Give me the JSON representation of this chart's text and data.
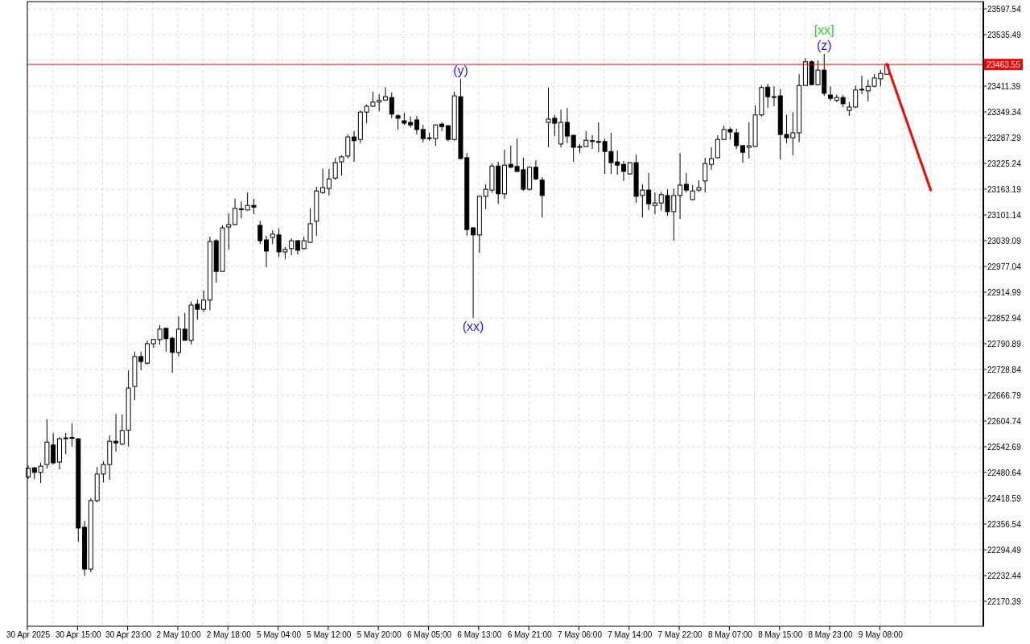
{
  "chart_data": {
    "type": "candlestick",
    "categories": [
      "30 Apr 2025",
      null,
      null,
      null,
      null,
      null,
      null,
      null,
      "30 Apr 15:00",
      null,
      null,
      null,
      null,
      null,
      null,
      null,
      "30 Apr 23:00",
      null,
      null,
      null,
      null,
      null,
      null,
      null,
      "2 May 10:00",
      null,
      null,
      null,
      null,
      null,
      null,
      null,
      "2 May 18:00",
      null,
      null,
      null,
      null,
      null,
      null,
      null,
      "5 May 04:00",
      null,
      null,
      null,
      null,
      null,
      null,
      null,
      "5 May 12:00",
      null,
      null,
      null,
      null,
      null,
      null,
      null,
      "5 May 20:00",
      null,
      null,
      null,
      null,
      null,
      null,
      null,
      "6 May 05:00",
      null,
      null,
      null,
      null,
      null,
      null,
      null,
      "6 May 13:00",
      null,
      null,
      null,
      null,
      null,
      null,
      null,
      "6 May 21:00",
      null,
      null,
      null,
      null,
      null,
      null,
      null,
      "7 May 06:00",
      null,
      null,
      null,
      null,
      null,
      null,
      null,
      "7 May 14:00",
      null,
      null,
      null,
      null,
      null,
      null,
      null,
      "7 May 22:00",
      null,
      null,
      null,
      null,
      null,
      null,
      null,
      "8 May 07:00",
      null,
      null,
      null,
      null,
      null,
      null,
      null,
      "8 May 15:00",
      null,
      null,
      null,
      null,
      null,
      null,
      null,
      "8 May 23:00",
      null,
      null,
      null,
      null,
      null,
      null,
      null,
      "9 May 08:00",
      null,
      null,
      null,
      null,
      null,
      null,
      null,
      null,
      null,
      null,
      null,
      null,
      null,
      null,
      null,
      null
    ],
    "ohlc": [
      [
        22470,
        22498,
        22465,
        22491
      ],
      [
        22492,
        22494,
        22465,
        22481
      ],
      [
        22481,
        22504,
        22455,
        22496
      ],
      [
        22500,
        22609,
        22490,
        22554
      ],
      [
        22547,
        22576,
        22500,
        22504
      ],
      [
        22506,
        22566,
        22488,
        22562
      ],
      [
        22564,
        22576,
        22525,
        22563
      ],
      [
        22564,
        22599,
        22543,
        22565
      ],
      [
        22562,
        22563,
        22314,
        22347
      ],
      [
        22349,
        22364,
        22232,
        22248
      ],
      [
        22248,
        22419,
        22240,
        22413
      ],
      [
        22413,
        22494,
        22409,
        22477
      ],
      [
        22477,
        22508,
        22457,
        22500
      ],
      [
        22500,
        22570,
        22463,
        22556
      ],
      [
        22556,
        22622,
        22531,
        22552
      ],
      [
        22549,
        22620,
        22547,
        22582
      ],
      [
        22583,
        22727,
        22543,
        22684
      ],
      [
        22688,
        22772,
        22655,
        22760
      ],
      [
        22760,
        22772,
        22727,
        22748
      ],
      [
        22744,
        22799,
        22741,
        22791
      ],
      [
        22791,
        22803,
        22781,
        22801
      ],
      [
        22801,
        22836,
        22789,
        22826
      ],
      [
        22828,
        22829,
        22772,
        22803
      ],
      [
        22804,
        22808,
        22721,
        22770
      ],
      [
        22770,
        22857,
        22760,
        22826
      ],
      [
        22826,
        22865,
        22799,
        22799
      ],
      [
        22799,
        22892,
        22789,
        22884
      ],
      [
        22886,
        22898,
        22849,
        22874
      ],
      [
        22874,
        22919,
        22867,
        22896
      ],
      [
        22896,
        23049,
        22872,
        23037
      ],
      [
        23039,
        23043,
        22938,
        22965
      ],
      [
        22965,
        23076,
        22964,
        23070
      ],
      [
        23072,
        23105,
        23018,
        23078
      ],
      [
        23078,
        23140,
        23076,
        23117
      ],
      [
        23115,
        23134,
        23093,
        23116
      ],
      [
        23113,
        23155,
        23112,
        23124
      ],
      [
        23124,
        23140,
        23103,
        23120
      ],
      [
        23076,
        23087,
        23031,
        23039
      ],
      [
        23041,
        23051,
        22975,
        23014
      ],
      [
        23047,
        23064,
        23031,
        23055
      ],
      [
        23053,
        23068,
        23000,
        23012
      ],
      [
        23012,
        23024,
        22995,
        23018
      ],
      [
        23020,
        23045,
        23004,
        23039
      ],
      [
        23039,
        23041,
        23006,
        23016
      ],
      [
        23020,
        23049,
        23018,
        23039
      ],
      [
        23035,
        23117,
        23034,
        23080
      ],
      [
        23086,
        23169,
        23051,
        23159
      ],
      [
        23155,
        23212,
        23152,
        23167
      ],
      [
        23165,
        23212,
        23148,
        23188
      ],
      [
        23190,
        23239,
        23186,
        23227
      ],
      [
        23229,
        23245,
        23196,
        23241
      ],
      [
        23243,
        23295,
        23237,
        23289
      ],
      [
        23289,
        23303,
        23229,
        23280
      ],
      [
        23283,
        23353,
        23274,
        23349
      ],
      [
        23349,
        23367,
        23322,
        23363
      ],
      [
        23363,
        23398,
        23361,
        23373
      ],
      [
        23373,
        23392,
        23351,
        23377
      ],
      [
        23378,
        23409,
        23376,
        23386
      ],
      [
        23384,
        23396,
        23334,
        23344
      ],
      [
        23340,
        23344,
        23307,
        23334
      ],
      [
        23328,
        23347,
        23318,
        23322
      ],
      [
        23324,
        23338,
        23312,
        23318
      ],
      [
        23330,
        23340,
        23295,
        23307
      ],
      [
        23307,
        23318,
        23276,
        23285
      ],
      [
        23287,
        23299,
        23280,
        23286
      ],
      [
        23285,
        23319,
        23268,
        23318
      ],
      [
        23320,
        23324,
        23303,
        23314
      ],
      [
        23316,
        23318,
        23278,
        23283
      ],
      [
        23283,
        23398,
        23280,
        23388
      ],
      [
        23386,
        23429,
        23235,
        23237
      ],
      [
        23239,
        23250,
        23051,
        23066
      ],
      [
        23070,
        23072,
        22853,
        23053
      ],
      [
        23053,
        23147,
        23010,
        23146
      ],
      [
        23146,
        23175,
        23115,
        23163
      ],
      [
        23161,
        23225,
        23154,
        23219
      ],
      [
        23219,
        23229,
        23128,
        23152
      ],
      [
        23152,
        23258,
        23140,
        23221
      ],
      [
        23223,
        23268,
        23214,
        23216
      ],
      [
        23218,
        23285,
        23204,
        23206
      ],
      [
        23210,
        23239,
        23159,
        23163
      ],
      [
        23163,
        23218,
        23159,
        23216
      ],
      [
        23216,
        23233,
        23185,
        23188
      ],
      [
        23185,
        23192,
        23095,
        23148
      ],
      [
        23324,
        23408,
        23264,
        23332
      ],
      [
        23334,
        23342,
        23291,
        23322
      ],
      [
        23272,
        23355,
        23264,
        23324
      ],
      [
        23324,
        23359,
        23274,
        23291
      ],
      [
        23293,
        23294,
        23229,
        23264
      ],
      [
        23266,
        23272,
        23250,
        23265
      ],
      [
        23266,
        23303,
        23265,
        23281
      ],
      [
        23280,
        23293,
        23260,
        23279
      ],
      [
        23278,
        23324,
        23252,
        23277
      ],
      [
        23278,
        23285,
        23200,
        23254
      ],
      [
        23254,
        23299,
        23200,
        23227
      ],
      [
        23229,
        23256,
        23198,
        23221
      ],
      [
        23223,
        23231,
        23183,
        23206
      ],
      [
        23200,
        23228,
        23198,
        23227
      ],
      [
        23227,
        23247,
        23130,
        23146
      ],
      [
        23148,
        23175,
        23095,
        23161
      ],
      [
        23161,
        23202,
        23113,
        23128
      ],
      [
        23124,
        23155,
        23103,
        23130
      ],
      [
        23130,
        23157,
        23111,
        23150
      ],
      [
        23148,
        23163,
        23099,
        23109
      ],
      [
        23109,
        23165,
        23039,
        23148
      ],
      [
        23148,
        23250,
        23091,
        23173
      ],
      [
        23175,
        23202,
        23155,
        23161
      ],
      [
        23138,
        23173,
        23137,
        23159
      ],
      [
        23161,
        23185,
        23157,
        23167
      ],
      [
        23183,
        23239,
        23155,
        23225
      ],
      [
        23223,
        23264,
        23210,
        23237
      ],
      [
        23239,
        23293,
        23238,
        23283
      ],
      [
        23283,
        23316,
        23282,
        23307
      ],
      [
        23307,
        23312,
        23283,
        23301
      ],
      [
        23299,
        23309,
        23260,
        23268
      ],
      [
        23268,
        23270,
        23227,
        23252
      ],
      [
        23264,
        23324,
        23237,
        23268
      ],
      [
        23266,
        23365,
        23265,
        23342
      ],
      [
        23342,
        23413,
        23338,
        23408
      ],
      [
        23409,
        23417,
        23359,
        23386
      ],
      [
        23386,
        23411,
        23363,
        23385
      ],
      [
        23388,
        23404,
        23235,
        23295
      ],
      [
        23295,
        23342,
        23274,
        23287
      ],
      [
        23287,
        23349,
        23245,
        23299
      ],
      [
        23299,
        23440,
        23276,
        23413
      ],
      [
        23413,
        23479,
        23412,
        23470
      ],
      [
        23470,
        23473,
        23414,
        23415
      ],
      [
        23415,
        23473,
        23413,
        23450
      ],
      [
        23450,
        23489,
        23388,
        23394
      ],
      [
        23390,
        23411,
        23376,
        23382
      ],
      [
        23377,
        23391,
        23373,
        23384
      ],
      [
        23384,
        23390,
        23361,
        23369
      ],
      [
        23353,
        23373,
        23340,
        23361
      ],
      [
        23361,
        23413,
        23359,
        23402
      ],
      [
        23402,
        23437,
        23392,
        23404
      ],
      [
        23400,
        23427,
        23375,
        23411
      ],
      [
        23411,
        23440,
        23409,
        23431
      ],
      [
        23429,
        23450,
        23411,
        23442
      ],
      [
        23440,
        23468,
        23440,
        23463.55
      ],
      null,
      null,
      null,
      null,
      null,
      null,
      null,
      null,
      null,
      null,
      null,
      null,
      null,
      null,
      null
    ],
    "series": [
      {
        "type": "line",
        "color": "#ff0000",
        "values": [
          null,
          null,
          null,
          null,
          null,
          null,
          null,
          null,
          null,
          null,
          null,
          null,
          null,
          null,
          null,
          null,
          null,
          null,
          null,
          null,
          null,
          null,
          null,
          null,
          null,
          null,
          null,
          null,
          null,
          null,
          null,
          null,
          null,
          null,
          null,
          null,
          null,
          null,
          null,
          null,
          null,
          null,
          null,
          null,
          null,
          null,
          null,
          null,
          null,
          null,
          null,
          null,
          null,
          null,
          null,
          null,
          null,
          null,
          null,
          null,
          null,
          null,
          null,
          null,
          null,
          null,
          null,
          null,
          null,
          null,
          null,
          null,
          null,
          null,
          null,
          null,
          null,
          null,
          null,
          null,
          null,
          null,
          null,
          null,
          null,
          null,
          null,
          null,
          null,
          null,
          null,
          null,
          null,
          null,
          null,
          null,
          null,
          null,
          null,
          null,
          null,
          null,
          null,
          null,
          null,
          null,
          null,
          null,
          null,
          null,
          null,
          null,
          null,
          null,
          null,
          null,
          null,
          null,
          null,
          null,
          null,
          null,
          null,
          null,
          null,
          null,
          null,
          null,
          null,
          null,
          null,
          null,
          null,
          null,
          null,
          null,
          null,
          23464,
          null,
          null,
          null,
          null,
          null,
          null,
          23161,
          null,
          null,
          null,
          null,
          null,
          null,
          null,
          null
        ]
      }
    ],
    "ylim": [
      22110.3,
      23615.0
    ],
    "yticks": [
      22170.39,
      22232.44,
      22294.49,
      22356.54,
      22418.59,
      22480.64,
      22542.69,
      22604.74,
      22666.79,
      22728.84,
      22790.89,
      22852.94,
      22914.99,
      22977.04,
      23039.09,
      23101.14,
      23163.19,
      23225.24,
      23287.29,
      23349.34,
      23411.39,
      {
        "value": 23473.44,
        "label": null
      },
      23535.49,
      23597.54
    ],
    "grid": true,
    "ref_lines": [
      {
        "axis": "y",
        "value": 23463.55,
        "label": "23463.55",
        "color": "#ff0000"
      }
    ],
    "annotations": [
      "(y)",
      "(xx)",
      "(z)",
      "[xx]"
    ]
  }
}
